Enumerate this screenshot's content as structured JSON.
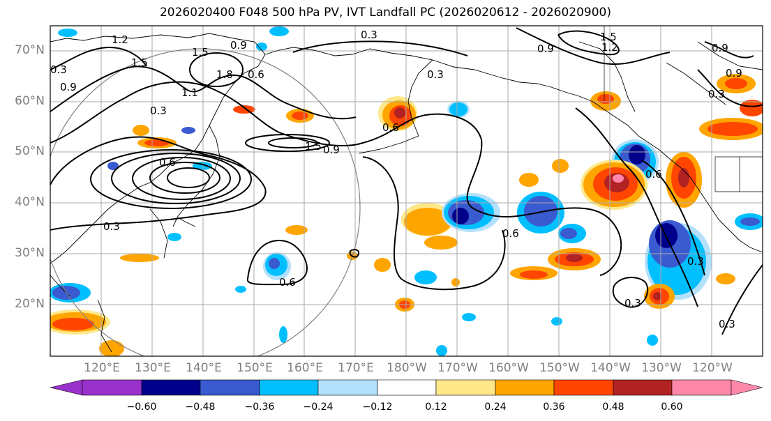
{
  "title": "2026020400 F048 500 hPa PV, IVT Landfall PC (2026020612 - 2026020900)",
  "lat_labels": [
    "70°N",
    "60°N",
    "50°N",
    "40°N",
    "30°N",
    "20°N"
  ],
  "lon_labels": [
    "120°E",
    "130°E",
    "140°E",
    "150°E",
    "160°E",
    "170°E",
    "180°W",
    "170°W",
    "160°W",
    "150°W",
    "140°W",
    "130°W",
    "120°W"
  ],
  "contour_labels": [
    "0.3",
    "1.5",
    "1.2",
    "1.5",
    "0.9",
    "0.3",
    "0.6",
    "0.9",
    "1.8",
    "1.1",
    "1.5",
    "0.9",
    "0.6",
    "0.3",
    "0.9",
    "1.2",
    "1.5",
    "0.9",
    "0.6",
    "0.3",
    "0.6",
    "0.3",
    "0.3",
    "0.6",
    "0.3",
    "0.3",
    "0.9",
    "0.3",
    "0.6"
  ],
  "colorbar": {
    "ticks": [
      "−0.60",
      "−0.48",
      "−0.36",
      "−0.24",
      "−0.12",
      "0.12",
      "0.24",
      "0.36",
      "0.48",
      "0.60"
    ],
    "colors": [
      "#9932cc",
      "#00008b",
      "#3a5bd0",
      "#00bfff",
      "#b3e0fb",
      "#ffffff",
      "#ffe88a",
      "#ffa500",
      "#ff4500",
      "#b22222",
      "#ff88aa"
    ]
  },
  "colors": {
    "coast": "#000000",
    "grid": "#aaaaaa",
    "contour": "#000000",
    "circle": "#808080",
    "label": "#808080"
  }
}
